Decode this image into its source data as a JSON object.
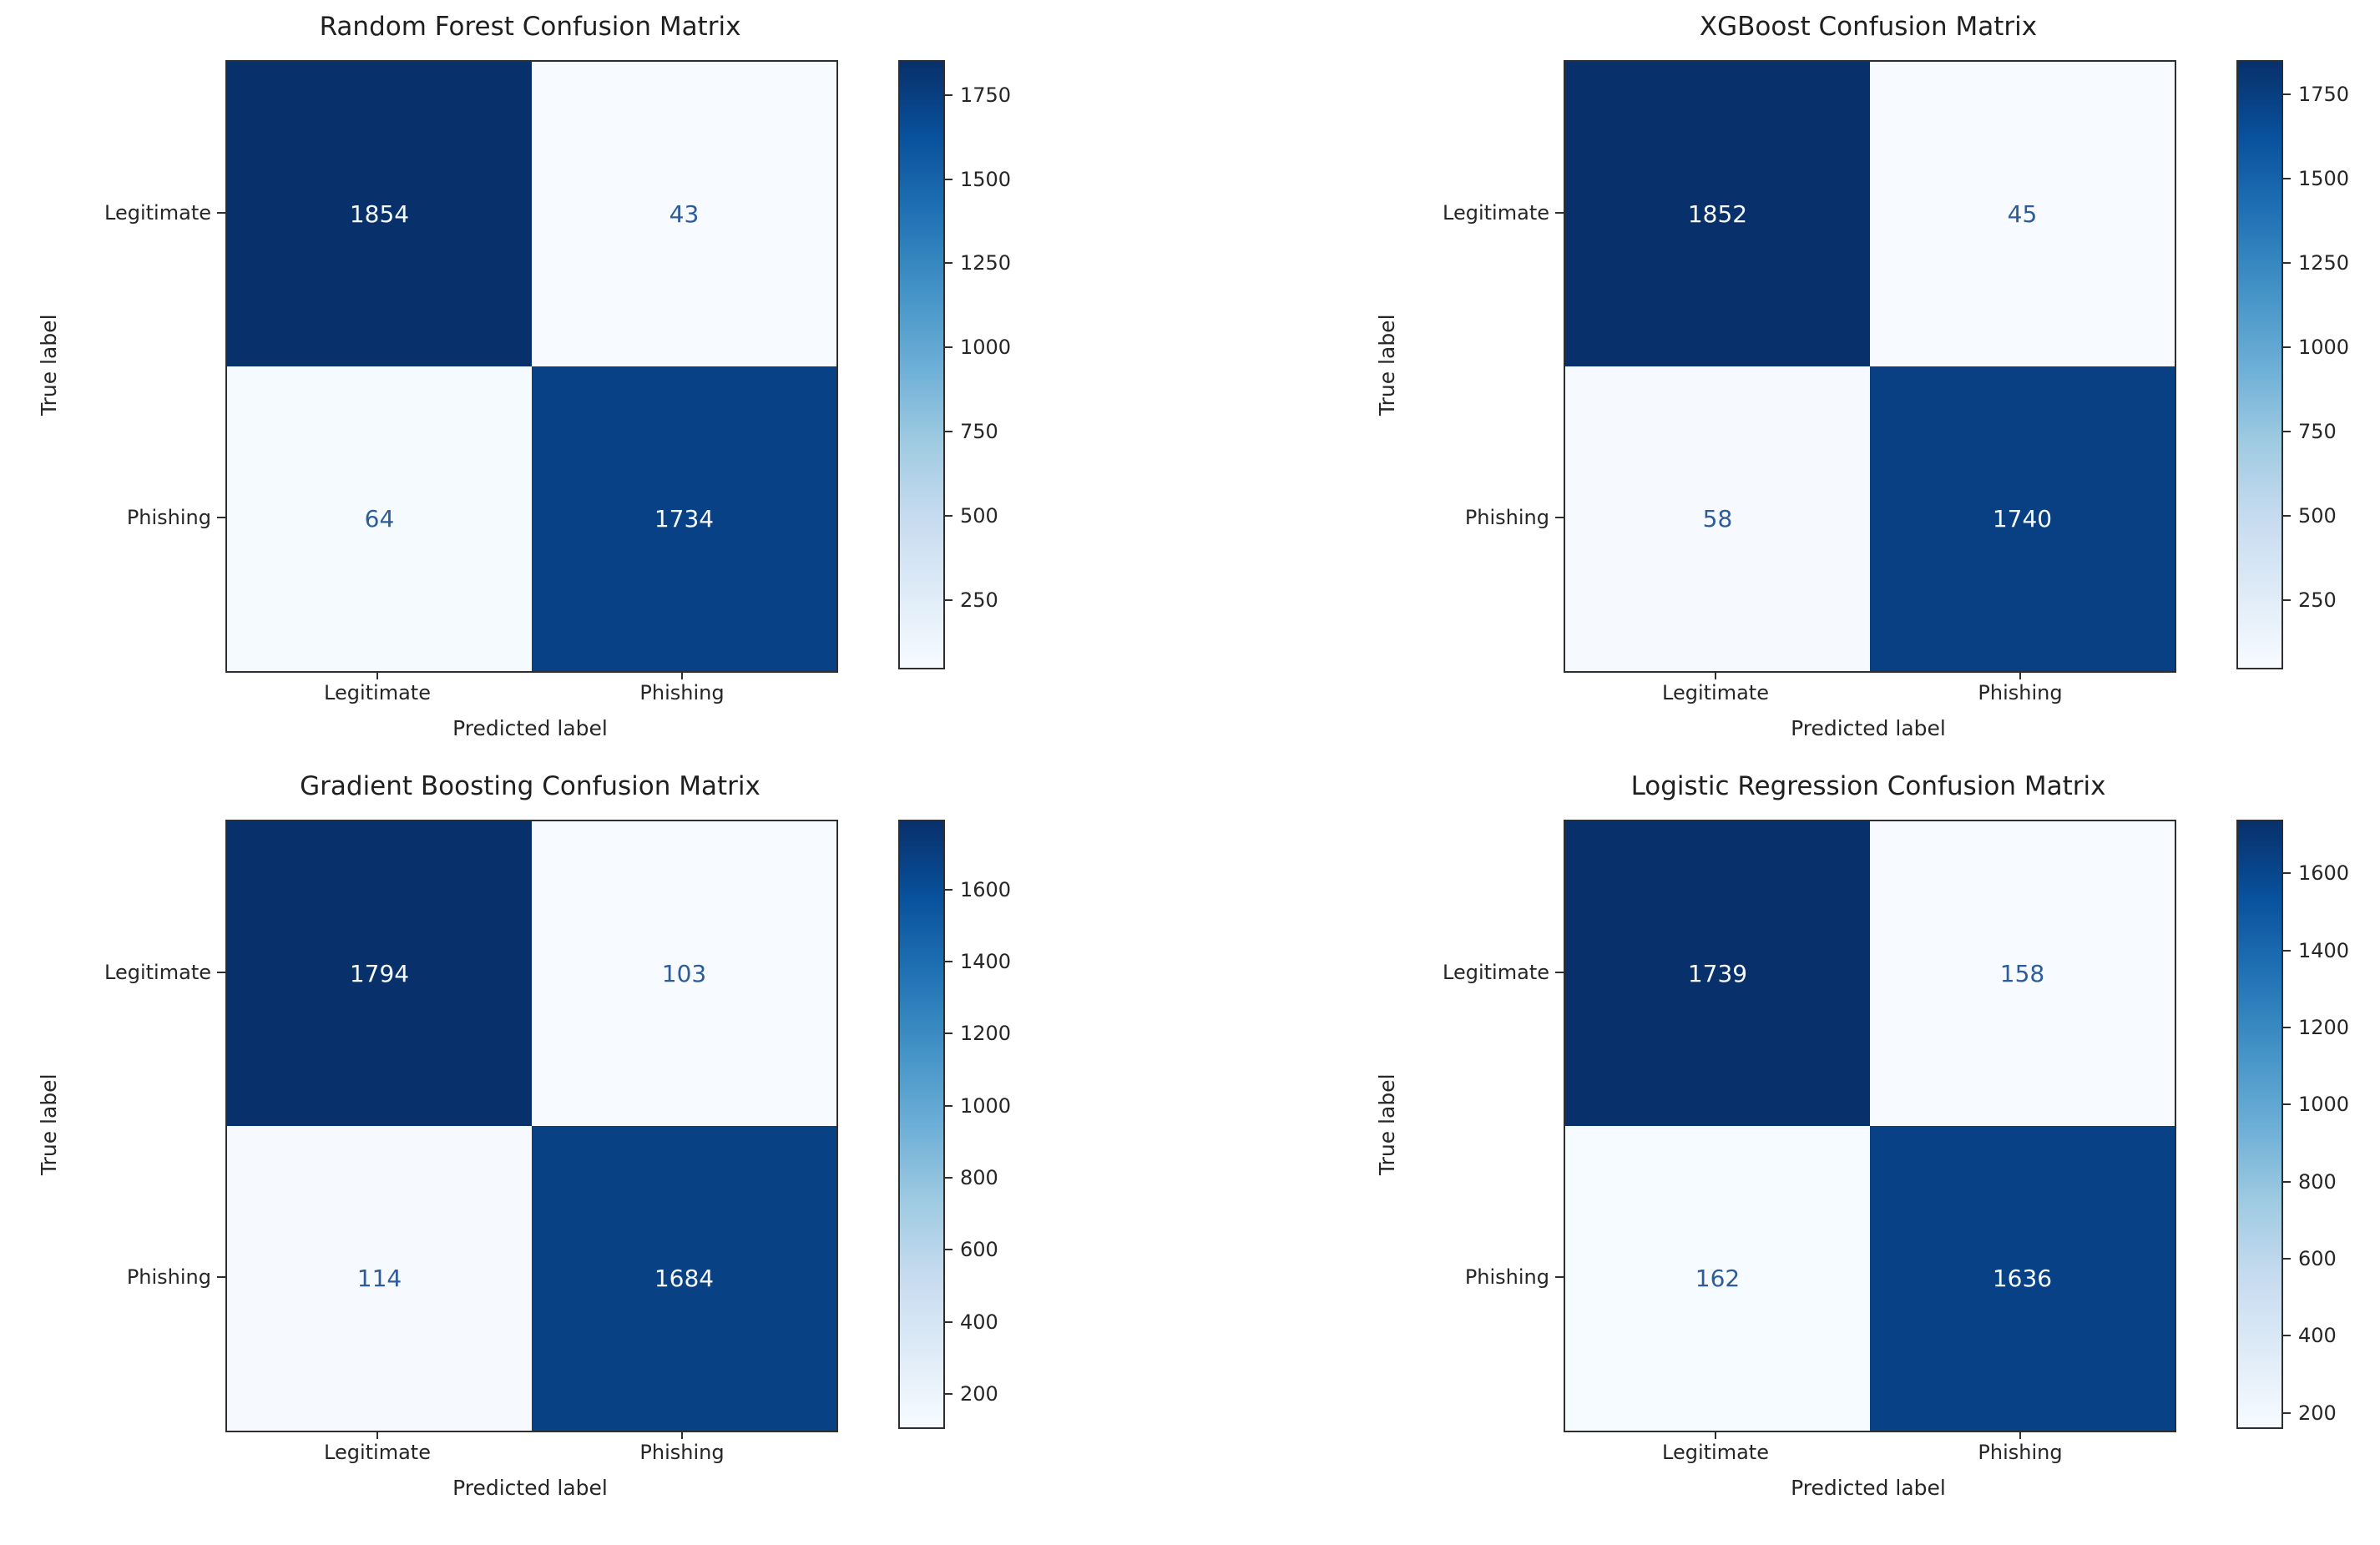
{
  "colors": {
    "background": "#ffffff",
    "text": "#262626",
    "spine": "#2e2e2e",
    "value_text_on_dark": "#f7fbff",
    "value_text_on_light": "#2d5c98",
    "colormap_stops": [
      {
        "t": 0.0,
        "c": "#f7fbff"
      },
      {
        "t": 0.125,
        "c": "#deebf7"
      },
      {
        "t": 0.25,
        "c": "#c6dbef"
      },
      {
        "t": 0.375,
        "c": "#9ecae1"
      },
      {
        "t": 0.5,
        "c": "#6baed6"
      },
      {
        "t": 0.625,
        "c": "#4292c6"
      },
      {
        "t": 0.75,
        "c": "#2171b5"
      },
      {
        "t": 0.875,
        "c": "#08519c"
      },
      {
        "t": 1.0,
        "c": "#08306b"
      }
    ]
  },
  "chart_data": [
    {
      "type": "heatmap",
      "title": "Random Forest Confusion Matrix",
      "xlabel": "Predicted label",
      "ylabel": "True label",
      "x_categories": [
        "Legitimate",
        "Phishing"
      ],
      "y_categories": [
        "Legitimate",
        "Phishing"
      ],
      "matrix": [
        [
          1854,
          43
        ],
        [
          64,
          1734
        ]
      ],
      "vmin": 43,
      "vmax": 1854,
      "colormap": "Blues",
      "colorbar_ticks": [
        250,
        500,
        750,
        1000,
        1250,
        1500,
        1750
      ],
      "legend_position": "colorbar-right",
      "grid": false
    },
    {
      "type": "heatmap",
      "title": "XGBoost Confusion Matrix",
      "xlabel": "Predicted label",
      "ylabel": "True label",
      "x_categories": [
        "Legitimate",
        "Phishing"
      ],
      "y_categories": [
        "Legitimate",
        "Phishing"
      ],
      "matrix": [
        [
          1852,
          45
        ],
        [
          58,
          1740
        ]
      ],
      "vmin": 45,
      "vmax": 1852,
      "colormap": "Blues",
      "colorbar_ticks": [
        250,
        500,
        750,
        1000,
        1250,
        1500,
        1750
      ],
      "legend_position": "colorbar-right",
      "grid": false
    },
    {
      "type": "heatmap",
      "title": "Gradient Boosting Confusion Matrix",
      "xlabel": "Predicted label",
      "ylabel": "True label",
      "x_categories": [
        "Legitimate",
        "Phishing"
      ],
      "y_categories": [
        "Legitimate",
        "Phishing"
      ],
      "matrix": [
        [
          1794,
          103
        ],
        [
          114,
          1684
        ]
      ],
      "vmin": 103,
      "vmax": 1794,
      "colormap": "Blues",
      "colorbar_ticks": [
        200,
        400,
        600,
        800,
        1000,
        1200,
        1400,
        1600
      ],
      "legend_position": "colorbar-right",
      "grid": false
    },
    {
      "type": "heatmap",
      "title": "Logistic Regression Confusion Matrix",
      "xlabel": "Predicted label",
      "ylabel": "True label",
      "x_categories": [
        "Legitimate",
        "Phishing"
      ],
      "y_categories": [
        "Legitimate",
        "Phishing"
      ],
      "matrix": [
        [
          1739,
          158
        ],
        [
          162,
          1636
        ]
      ],
      "vmin": 158,
      "vmax": 1739,
      "colormap": "Blues",
      "colorbar_ticks": [
        200,
        400,
        600,
        800,
        1000,
        1200,
        1400,
        1600
      ],
      "legend_position": "colorbar-right",
      "grid": false
    }
  ]
}
